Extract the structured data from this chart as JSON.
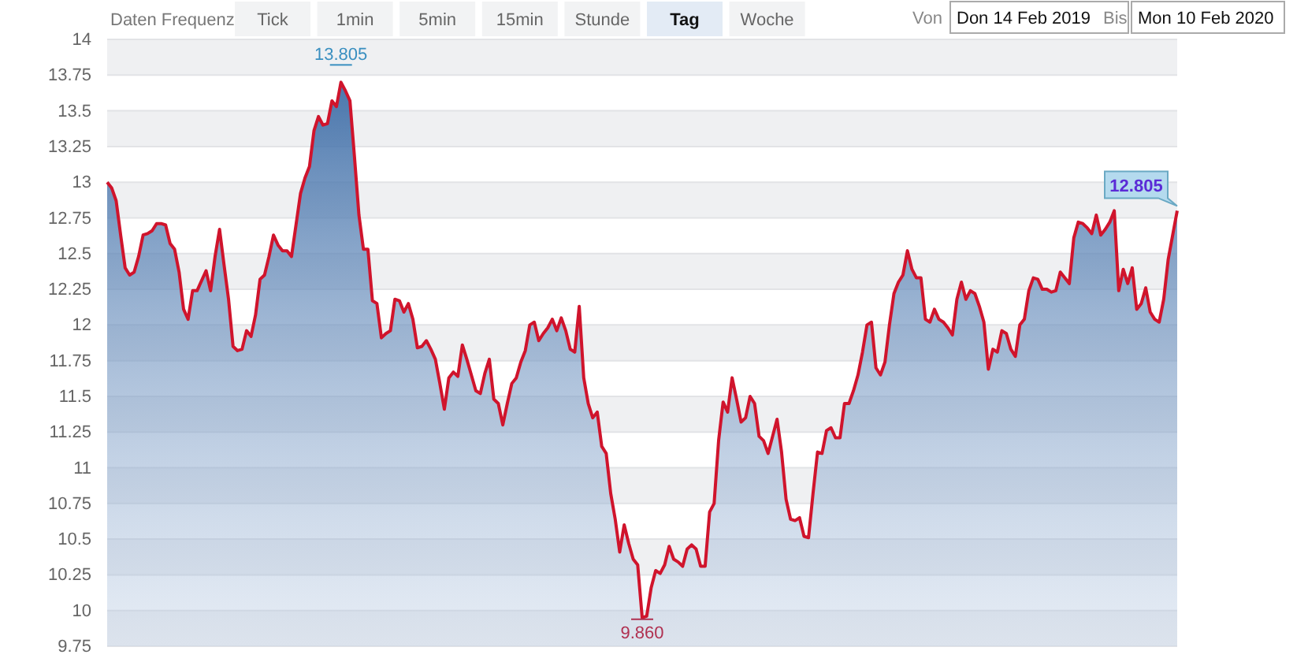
{
  "chart_data": {
    "type": "area",
    "categories": [
      null,
      null,
      null,
      null,
      null,
      null,
      null,
      null,
      null,
      null,
      null,
      null,
      null,
      null,
      null,
      null,
      null,
      null,
      null,
      null,
      null,
      null,
      null,
      null,
      null,
      null,
      null,
      null,
      null,
      null,
      null,
      null,
      null,
      null,
      null,
      null,
      null,
      null,
      null,
      null,
      null,
      null,
      null,
      null,
      null,
      null,
      null,
      null,
      null,
      null,
      null,
      null,
      null,
      null,
      null,
      null,
      null,
      null,
      null,
      null,
      null,
      null,
      null,
      null,
      null,
      null,
      null,
      null,
      null,
      null,
      null,
      null,
      null,
      null,
      null,
      null,
      null,
      null,
      null,
      null,
      null,
      null,
      null,
      null,
      null,
      null,
      null,
      null,
      null,
      null,
      null,
      null,
      null,
      null,
      null,
      null,
      null,
      null,
      null,
      null,
      null,
      null,
      null,
      null,
      null,
      null,
      null,
      null,
      null,
      null,
      null,
      null,
      null,
      null,
      null,
      null,
      null,
      null,
      null,
      null,
      null,
      null,
      null,
      null,
      null,
      null,
      null,
      null,
      null,
      null,
      null,
      null,
      null,
      null,
      null,
      null,
      null,
      null,
      null,
      null,
      null,
      null,
      null,
      null,
      null,
      null,
      null,
      null,
      null,
      null,
      null,
      null,
      null,
      null,
      null,
      null,
      null,
      null,
      null,
      null,
      null,
      null,
      null,
      null,
      null,
      null,
      null,
      null,
      null,
      null,
      null,
      null,
      null,
      null,
      null,
      null,
      null,
      null,
      null,
      null,
      null,
      null,
      null,
      null,
      null,
      null,
      null,
      null,
      null,
      null,
      null,
      null,
      null,
      null,
      null,
      null,
      null,
      null,
      null,
      null,
      null,
      null,
      null,
      null,
      null,
      null,
      null,
      null,
      null,
      null,
      null,
      null,
      null,
      null,
      null,
      null,
      null,
      null,
      null,
      null,
      null,
      null,
      null,
      null,
      null,
      null,
      null,
      null,
      null,
      null,
      null,
      null,
      null,
      null,
      null,
      null,
      null,
      null,
      null
    ],
    "series": [
      {
        "color": "#d0142c",
        "values": [
          13.0,
          12.96,
          12.87,
          12.63,
          12.4,
          12.35,
          12.37,
          12.48,
          12.63,
          12.64,
          12.66,
          12.71,
          12.71,
          12.7,
          12.57,
          12.53,
          12.37,
          12.11,
          12.04,
          12.24,
          12.24,
          12.31,
          12.38,
          12.24,
          12.48,
          12.67,
          12.42,
          12.18,
          11.85,
          11.82,
          11.83,
          11.96,
          11.92,
          12.07,
          12.32,
          12.35,
          12.48,
          12.63,
          12.56,
          12.52,
          12.52,
          12.48,
          12.7,
          12.92,
          13.03,
          13.11,
          13.36,
          13.46,
          13.4,
          13.41,
          13.57,
          13.53,
          13.7,
          13.64,
          13.57,
          13.18,
          12.77,
          12.53,
          12.53,
          12.17,
          12.15,
          11.91,
          11.94,
          11.96,
          12.18,
          12.17,
          12.09,
          12.15,
          12.04,
          11.84,
          11.85,
          11.89,
          11.83,
          11.76,
          11.59,
          11.41,
          11.63,
          11.67,
          11.64,
          11.86,
          11.76,
          11.65,
          11.54,
          11.52,
          11.66,
          11.76,
          11.48,
          11.45,
          11.3,
          11.45,
          11.59,
          11.63,
          11.74,
          11.82,
          12.0,
          12.02,
          11.89,
          11.94,
          11.98,
          12.04,
          11.96,
          12.05,
          11.96,
          11.83,
          11.81,
          12.13,
          11.63,
          11.45,
          11.35,
          11.39,
          11.15,
          11.1,
          10.82,
          10.64,
          10.41,
          10.6,
          10.47,
          10.36,
          10.32,
          9.95,
          9.96,
          10.16,
          10.28,
          10.26,
          10.32,
          10.45,
          10.36,
          10.34,
          10.31,
          10.43,
          10.46,
          10.43,
          10.31,
          10.31,
          10.69,
          10.75,
          11.19,
          11.46,
          11.39,
          11.63,
          11.48,
          11.32,
          11.35,
          11.5,
          11.45,
          11.22,
          11.19,
          11.1,
          11.22,
          11.34,
          11.11,
          10.78,
          10.64,
          10.63,
          10.65,
          10.52,
          10.51,
          10.82,
          11.11,
          11.1,
          11.26,
          11.28,
          11.21,
          11.21,
          11.45,
          11.45,
          11.54,
          11.65,
          11.81,
          12.0,
          12.02,
          11.7,
          11.65,
          11.74,
          12.0,
          12.22,
          12.3,
          12.35,
          12.52,
          12.39,
          12.33,
          12.33,
          12.04,
          12.02,
          12.11,
          12.04,
          12.02,
          11.98,
          11.93,
          12.18,
          12.3,
          12.18,
          12.24,
          12.22,
          12.13,
          12.02,
          11.69,
          11.83,
          11.81,
          11.96,
          11.94,
          11.83,
          11.78,
          12.0,
          12.04,
          12.24,
          12.33,
          12.32,
          12.25,
          12.25,
          12.23,
          12.24,
          12.37,
          12.33,
          12.29,
          12.61,
          12.72,
          12.71,
          12.68,
          12.64,
          12.77,
          12.63,
          12.67,
          12.72,
          12.8,
          12.24,
          12.39,
          12.29,
          12.4,
          12.11,
          12.15,
          12.26,
          12.09,
          12.04,
          12.02,
          12.18,
          12.46,
          12.63,
          12.8
        ]
      }
    ],
    "ylim": [
      9.75,
      14
    ],
    "yticks": [
      9.75,
      10,
      10.25,
      10.5,
      10.75,
      11,
      11.25,
      11.5,
      11.75,
      12,
      12.25,
      12.5,
      12.75,
      13,
      13.25,
      13.5,
      13.75,
      14
    ],
    "grid": "y",
    "annotations": [
      "13.805",
      "9.860",
      "12.805",
      "Daten Frequenz",
      "Tick",
      "1min",
      "5min",
      "15min",
      "Stunde",
      "Tag",
      "Woche",
      "Von",
      "Don 14 Feb 2019",
      "Bis",
      "Mon 10 Feb 2020"
    ]
  }
}
